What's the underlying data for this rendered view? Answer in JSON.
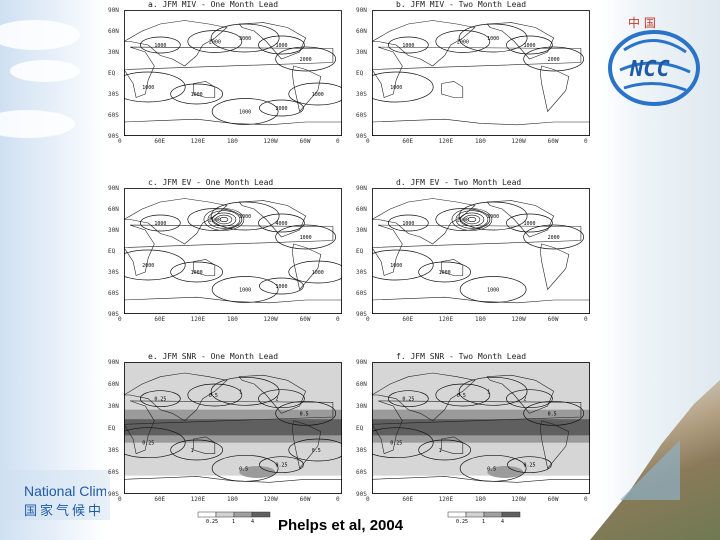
{
  "slide": {
    "citation": "Phelps et al, 2004",
    "org_name_en": "National Clim",
    "org_name_cn": "国家气候中",
    "logo_text": "NCC",
    "logo_cn": "中 国"
  },
  "panels": [
    {
      "id": "a",
      "title": "a. JFM MIV  -  One Month Lead",
      "type": "contour",
      "contours": [
        "1000",
        "2000",
        "3000",
        "1000",
        "2000",
        "1000",
        "1000",
        "1000",
        "2000",
        "1000"
      ]
    },
    {
      "id": "b",
      "title": "b. JFM MIV  -  Two Month Lead",
      "type": "contour",
      "contours": [
        "1000",
        "2000",
        "1000",
        "1000",
        "2000",
        "1000"
      ]
    },
    {
      "id": "c",
      "title": "c. JFM EV  -  One Month Lead",
      "type": "contour",
      "contours": [
        "1000",
        "2000",
        "3000",
        "4000",
        "1000",
        "2000",
        "1000",
        "1000",
        "1000",
        "1000"
      ]
    },
    {
      "id": "d",
      "title": "d. JFM EV  -  Two Month Lead",
      "type": "contour",
      "contours": [
        "1000",
        "2000",
        "3000",
        "1000",
        "2000",
        "1000",
        "1000",
        "1000"
      ]
    },
    {
      "id": "e",
      "title": "e. JFM SNR  -  One Month Lead",
      "type": "shaded",
      "contours": [
        "0.25",
        "0.5",
        "1",
        "2",
        "0.5",
        "0.25",
        "1",
        "0.5",
        "0.25",
        "0.5"
      ]
    },
    {
      "id": "f",
      "title": "f. JFM SNR  -  Two Month Lead",
      "type": "shaded",
      "contours": [
        "0.25",
        "0.5",
        "1",
        "2",
        "0.5",
        "0.25",
        "1",
        "0.5",
        "0.25"
      ]
    }
  ],
  "axes": {
    "lat_labels": [
      "90N",
      "60N",
      "30N",
      "EQ",
      "30S",
      "60S",
      "90S"
    ],
    "lon_labels": [
      "0",
      "60E",
      "120E",
      "180",
      "120W",
      "60W",
      "0"
    ]
  },
  "colorbar": {
    "ticks": [
      "0.25",
      "1",
      "4"
    ]
  }
}
